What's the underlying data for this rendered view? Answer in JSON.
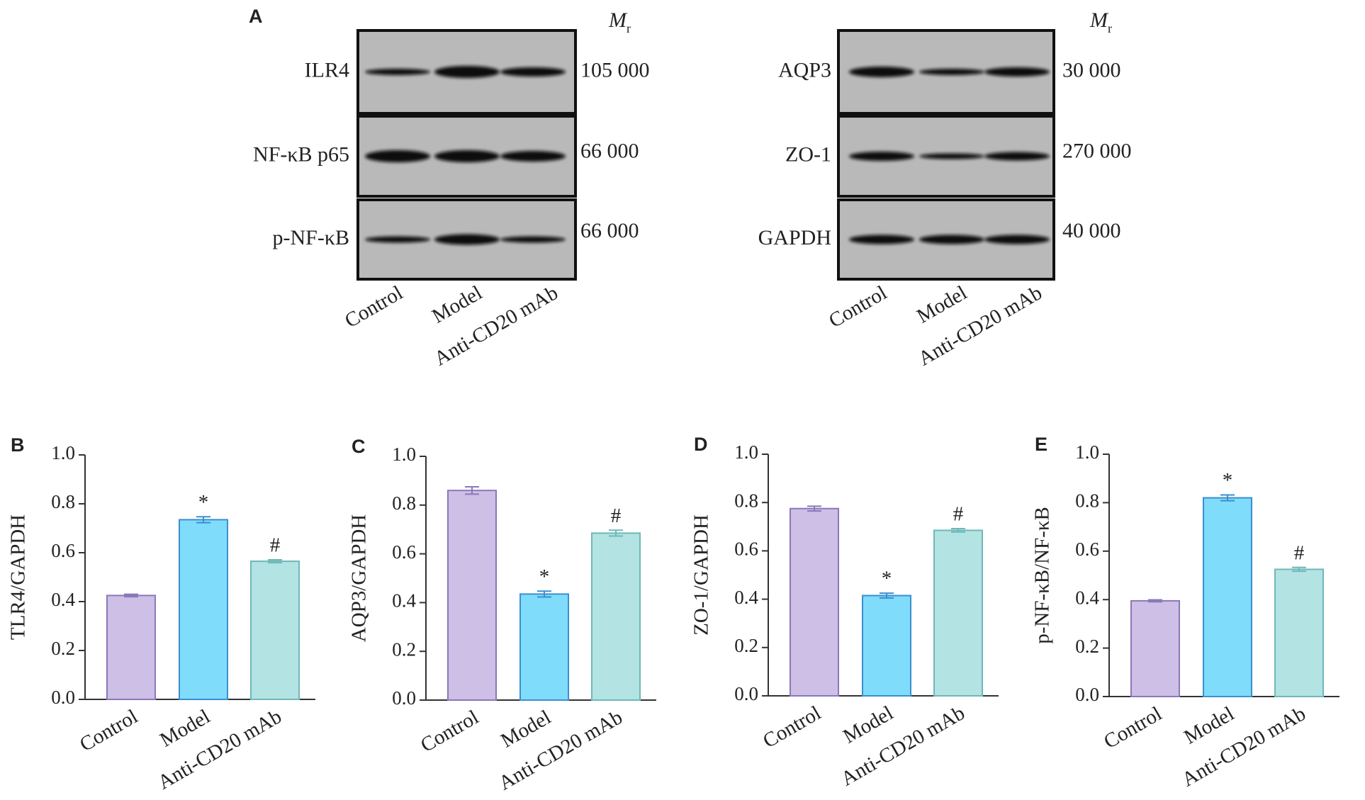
{
  "blot_panel": {
    "label": "A",
    "mr_symbol": "M",
    "mr_subscript": "r",
    "blots": [
      {
        "rows": [
          {
            "protein": "ILR4",
            "mr": "105 000"
          },
          {
            "protein": "NF-κB p65",
            "mr": "66 000"
          },
          {
            "protein": "p-NF-κB",
            "mr": "66 000"
          }
        ],
        "lanes": [
          "Control",
          "Model",
          "Anti-CD20 mAb"
        ]
      },
      {
        "rows": [
          {
            "protein": "AQP3",
            "mr": "30 000"
          },
          {
            "protein": "ZO-1",
            "mr": "270 000"
          },
          {
            "protein": "GAPDH",
            "mr": "40 000"
          }
        ],
        "lanes": [
          "Control",
          "Model",
          "Anti-CD20 mAb"
        ]
      }
    ]
  },
  "chart_data": [
    {
      "type": "bar",
      "panel_label": "B",
      "ylabel": "TLR4/GAPDH",
      "categories": [
        "Control",
        "Model",
        "Anti-CD20 mAb"
      ],
      "values": [
        0.425,
        0.735,
        0.565
      ],
      "errors": [
        0.005,
        0.012,
        0.006
      ],
      "annotations": [
        null,
        "*",
        "#"
      ],
      "colors": [
        "#cdbfe6",
        "#7fdcfb",
        "#b3e3e3"
      ],
      "edge_colors": [
        "#8a78b8",
        "#3a8fd0",
        "#6fb8b8"
      ],
      "ylim": [
        0,
        1
      ],
      "yticks": [
        {
          "value": 0,
          "label": "0.0"
        },
        {
          "value": 0.2,
          "label": "0.2"
        },
        {
          "value": 0.4,
          "label": "0.4"
        },
        {
          "value": 0.6,
          "label": "0.6"
        },
        {
          "value": 0.8,
          "label": "0.8"
        },
        {
          "value": 1,
          "label": "1.0"
        }
      ]
    },
    {
      "type": "bar",
      "panel_label": "C",
      "ylabel": "AQP3/GAPDH",
      "categories": [
        "Control",
        "Model",
        "Anti-CD20 mAb"
      ],
      "values": [
        0.86,
        0.435,
        0.685
      ],
      "errors": [
        0.015,
        0.012,
        0.012
      ],
      "annotations": [
        null,
        "*",
        "#"
      ],
      "colors": [
        "#cdbfe6",
        "#7fdcfb",
        "#b3e3e3"
      ],
      "edge_colors": [
        "#8a78b8",
        "#3a8fd0",
        "#6fb8b8"
      ],
      "ylim": [
        0,
        1
      ],
      "yticks": [
        {
          "value": 0,
          "label": "0.0"
        },
        {
          "value": 0.2,
          "label": "0.2"
        },
        {
          "value": 0.4,
          "label": "0.4"
        },
        {
          "value": 0.6,
          "label": "0.6"
        },
        {
          "value": 0.8,
          "label": "0.8"
        },
        {
          "value": 1,
          "label": "1.0"
        }
      ]
    },
    {
      "type": "bar",
      "panel_label": "D",
      "ylabel": "ZO-1/GAPDH",
      "categories": [
        "Control",
        "Model",
        "Anti-CD20 mAb"
      ],
      "values": [
        0.775,
        0.415,
        0.685
      ],
      "errors": [
        0.01,
        0.01,
        0.007
      ],
      "annotations": [
        null,
        "*",
        "#"
      ],
      "colors": [
        "#cdbfe6",
        "#7fdcfb",
        "#b3e3e3"
      ],
      "edge_colors": [
        "#8a78b8",
        "#3a8fd0",
        "#6fb8b8"
      ],
      "ylim": [
        0,
        1
      ],
      "yticks": [
        {
          "value": 0,
          "label": "0.0"
        },
        {
          "value": 0.2,
          "label": "0.2"
        },
        {
          "value": 0.4,
          "label": "0.4"
        },
        {
          "value": 0.6,
          "label": "0.6"
        },
        {
          "value": 0.8,
          "label": "0.8"
        },
        {
          "value": 1,
          "label": "1.0"
        }
      ]
    },
    {
      "type": "bar",
      "panel_label": "E",
      "ylabel": "p-NF-κB/NF-κB",
      "categories": [
        "Control",
        "Model",
        "Anti-CD20 mAb"
      ],
      "values": [
        0.395,
        0.82,
        0.525
      ],
      "errors": [
        0.004,
        0.012,
        0.008
      ],
      "annotations": [
        null,
        "*",
        "#"
      ],
      "colors": [
        "#cdbfe6",
        "#7fdcfb",
        "#b3e3e3"
      ],
      "edge_colors": [
        "#8a78b8",
        "#3a8fd0",
        "#6fb8b8"
      ],
      "ylim": [
        0,
        1
      ],
      "yticks": [
        {
          "value": 0,
          "label": "0.0"
        },
        {
          "value": 0.2,
          "label": "0.2"
        },
        {
          "value": 0.4,
          "label": "0.4"
        },
        {
          "value": 0.6,
          "label": "0.6"
        },
        {
          "value": 0.8,
          "label": "0.8"
        },
        {
          "value": 1,
          "label": "1.0"
        }
      ]
    }
  ]
}
